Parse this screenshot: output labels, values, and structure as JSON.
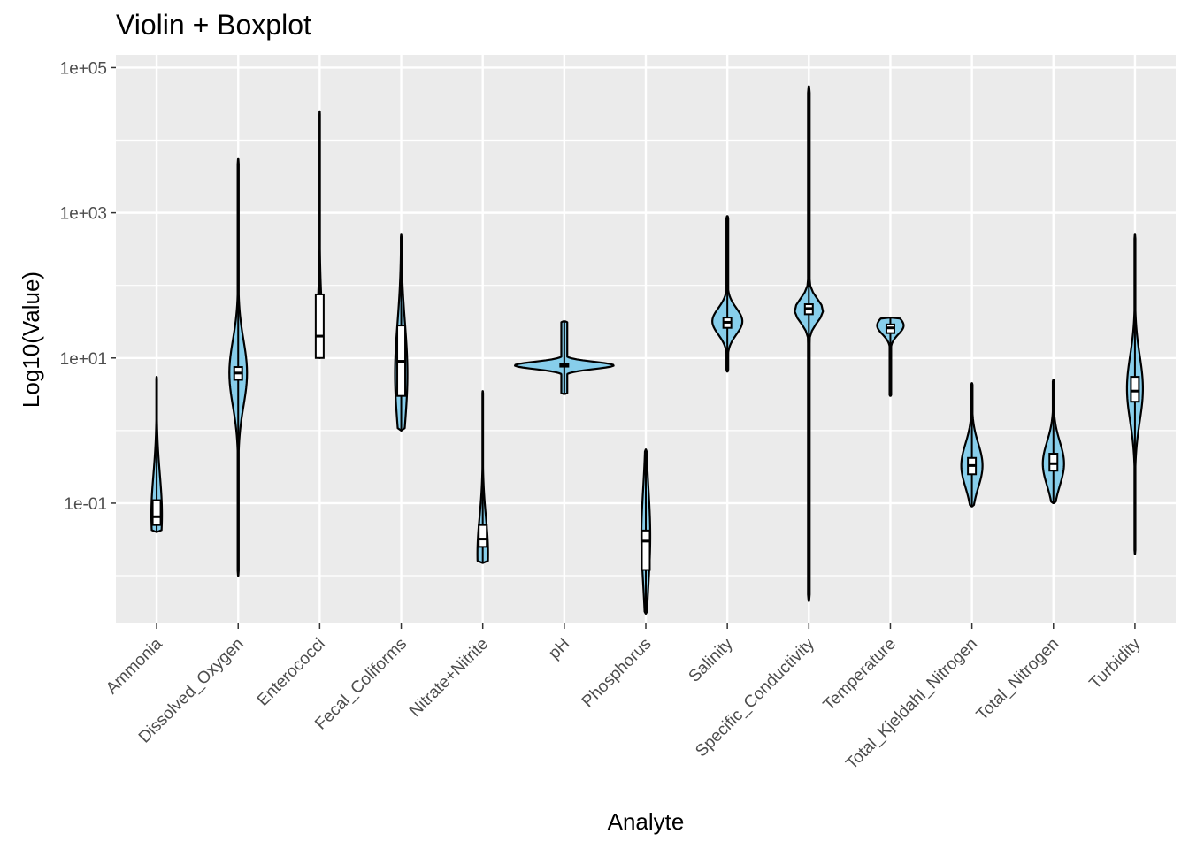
{
  "chart_data": {
    "type": "violin",
    "title": "Violin + Boxplot",
    "xlabel": "Analyte",
    "ylabel": "Log10(Value)",
    "y_scale": "log10",
    "ylim": [
      0.0022,
      150000
    ],
    "y_ticks": [
      {
        "value": 0.1,
        "label": "1e-01"
      },
      {
        "value": 10,
        "label": "1e+01"
      },
      {
        "value": 1000,
        "label": "1e+03"
      },
      {
        "value": 100000,
        "label": "1e+05"
      }
    ],
    "y_minor_ticks": [
      0.01,
      1,
      100,
      10000
    ],
    "grid": true,
    "background": "#ebebeb",
    "violin_fill": "#87ceeb",
    "categories": [
      "Ammonia",
      "Dissolved_Oxygen",
      "Enterococci",
      "Fecal_Coliforms",
      "Nitrate+Nitrite",
      "pH",
      "Phosphorus",
      "Salinity",
      "Specific_Conductivity",
      "Temperature",
      "Total_Kjeldahl_Nitrogen",
      "Total_Nitrogen",
      "Turbidity"
    ],
    "series": [
      {
        "category": "Ammonia",
        "min": 0.04,
        "max": 5.5,
        "q1": 0.05,
        "median": 0.065,
        "q3": 0.11,
        "density_peak": 0.07
      },
      {
        "category": "Dissolved_Oxygen",
        "min": 0.01,
        "max": 5500,
        "q1": 5,
        "median": 6.2,
        "q3": 7.5,
        "density_peak": 6.2
      },
      {
        "category": "Enterococci",
        "min": 10,
        "max": 25000,
        "q1": 10,
        "median": 20,
        "q3": 75,
        "density_peak": 12
      },
      {
        "category": "Fecal_Coliforms",
        "min": 1,
        "max": 500,
        "q1": 3,
        "median": 9,
        "q3": 28,
        "density_peak": 6
      },
      {
        "category": "Nitrate+Nitrite",
        "min": 0.015,
        "max": 3.5,
        "q1": 0.025,
        "median": 0.032,
        "q3": 0.05,
        "density_peak": 0.02
      },
      {
        "category": "pH",
        "min": 3.2,
        "max": 32,
        "q1": 7.6,
        "median": 7.9,
        "q3": 8.2,
        "density_peak": 7.9
      },
      {
        "category": "Phosphorus",
        "min": 0.003,
        "max": 0.55,
        "q1": 0.012,
        "median": 0.03,
        "q3": 0.042,
        "density_peak": 0.035
      },
      {
        "category": "Salinity",
        "min": 6.5,
        "max": 900,
        "q1": 26,
        "median": 31,
        "q3": 36,
        "density_peak": 32
      },
      {
        "category": "Specific_Conductivity",
        "min": 0.0045,
        "max": 55000,
        "q1": 40,
        "median": 48,
        "q3": 55,
        "density_peak": 45
      },
      {
        "category": "Temperature",
        "min": 3,
        "max": 36,
        "q1": 22,
        "median": 26,
        "q3": 29,
        "density_peak": 28
      },
      {
        "category": "Total_Kjeldahl_Nitrogen",
        "min": 0.09,
        "max": 4.5,
        "q1": 0.25,
        "median": 0.33,
        "q3": 0.42,
        "density_peak": 0.33
      },
      {
        "category": "Total_Nitrogen",
        "min": 0.1,
        "max": 5,
        "q1": 0.28,
        "median": 0.35,
        "q3": 0.48,
        "density_peak": 0.35
      },
      {
        "category": "Turbidity",
        "min": 0.02,
        "max": 500,
        "q1": 2.5,
        "median": 3.5,
        "q3": 5.5,
        "density_peak": 3.8
      }
    ]
  }
}
